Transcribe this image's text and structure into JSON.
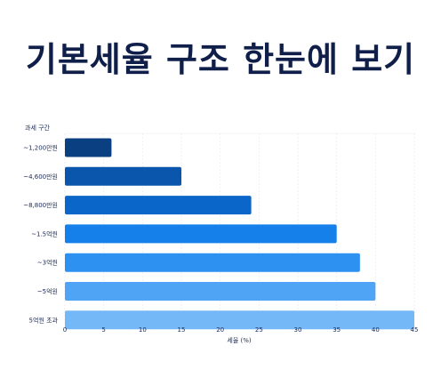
{
  "page_title": "기본세율 구조 한눈에 보기",
  "chart_data": {
    "type": "bar",
    "orientation": "horizontal",
    "title": "기본세율 구조 한눈에 보기",
    "ylabel": "과세 구간",
    "xlabel": "세율 (%)",
    "categories": [
      "~1,200만원",
      "~4,600만원",
      "~8,800만원",
      "~1.5억원",
      "~3억원",
      "~5억원",
      "5억원 초과"
    ],
    "values": [
      6,
      15,
      24,
      35,
      38,
      40,
      45
    ],
    "xlim": [
      0,
      45
    ],
    "xticks": [
      0,
      5,
      10,
      15,
      20,
      25,
      30,
      35,
      40,
      45
    ],
    "colors": [
      "#0a3f82",
      "#0a56ad",
      "#0a66c8",
      "#1680ea",
      "#2d91f2",
      "#4fa4f5",
      "#75b8f8"
    ],
    "grid": true
  }
}
